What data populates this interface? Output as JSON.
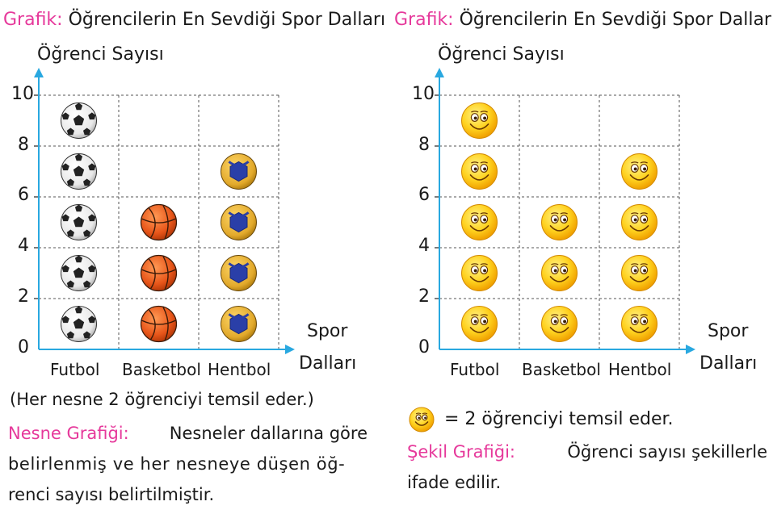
{
  "colors": {
    "accent_pink": "#e6399b",
    "axis_blue": "#29a8e0",
    "grid": "#555555"
  },
  "left_chart": {
    "title_label": "Grafik:",
    "title": "Öğrencilerin En Sevdiği Spor Dalları",
    "y_axis_title": "Öğrenci Sayısı",
    "x_axis_title_line1": "Spor",
    "x_axis_title_line2": "Dalları",
    "y_ticks": [
      "0",
      "2",
      "4",
      "6",
      "8",
      "10"
    ],
    "categories": [
      "Futbol",
      "Basketbol",
      "Hentbol"
    ],
    "note": "(Her nesne 2 öğrenciyi temsil eder.)",
    "desc_label": "Nesne Grafiği:",
    "desc_line1": "Nesneler dallarına göre",
    "desc_line2": "belirlenmiş ve her nesneye düşen öğ-",
    "desc_line3": "renci sayısı belirtilmiştir."
  },
  "right_chart": {
    "title_label": "Grafik:",
    "title": "Öğrencilerin En Sevdiği Spor Dalları",
    "y_axis_title": "Öğrenci Sayısı",
    "x_axis_title_line1": "Spor",
    "x_axis_title_line2": "Dalları",
    "y_ticks": [
      "0",
      "2",
      "4",
      "6",
      "8",
      "10"
    ],
    "categories": [
      "Futbol",
      "Basketbol",
      "Hentbol"
    ],
    "legend": "= 2 öğrenciyi temsil eder.",
    "desc_label": "Şekil Grafiği:",
    "desc_line1": "Öğrenci sayısı şekillerle",
    "desc_line2": "ifade edilir."
  },
  "chart_data": [
    {
      "type": "bar",
      "title": "Öğrencilerin En Sevdiği Spor Dalları",
      "xlabel": "Spor Dalları",
      "ylabel": "Öğrenci Sayısı",
      "categories": [
        "Futbol",
        "Basketbol",
        "Hentbol"
      ],
      "values": [
        10,
        6,
        8
      ],
      "ylim": [
        0,
        10
      ],
      "icons": [
        "soccer-ball-icon",
        "basketball-icon",
        "handball-icon"
      ]
    },
    {
      "type": "bar",
      "title": "Öğrencilerin En Sevdiği Spor Dalları",
      "xlabel": "Spor Dalları",
      "ylabel": "Öğrenci Sayısı",
      "categories": [
        "Futbol",
        "Basketbol",
        "Hentbol"
      ],
      "values": [
        10,
        6,
        8
      ],
      "ylim": [
        0,
        10
      ],
      "icons": [
        "smiley-face-icon",
        "smiley-face-icon",
        "smiley-face-icon"
      ]
    }
  ]
}
